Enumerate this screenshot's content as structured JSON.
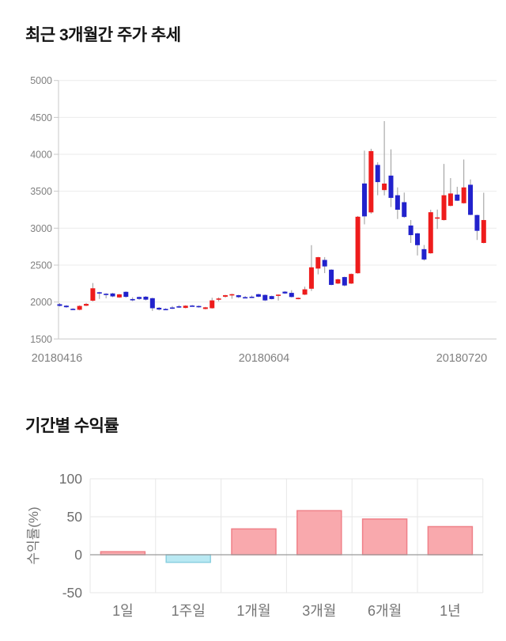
{
  "chart_data": [
    {
      "type": "candlestick",
      "title": "최근 3개월간 주가 추세",
      "ylabel": "",
      "xlabel": "",
      "ylim": [
        1500,
        5000
      ],
      "y_ticks": [
        5000,
        4500,
        4000,
        3500,
        3000,
        2500,
        2000,
        1500
      ],
      "x_tick_labels": [
        "20180416",
        "20180604",
        "20180720"
      ],
      "legend": "none",
      "grid": "horizontal",
      "colors": {
        "up": "#ee1c1c",
        "down": "#2222cc",
        "wick": "#999999",
        "grid": "#ebebeb",
        "axis": "#c9c9c9",
        "tick_text": "#808080"
      },
      "candles_ohlc": [
        [
          1970,
          1985,
          1940,
          1948
        ],
        [
          1950,
          1958,
          1922,
          1930
        ],
        [
          1908,
          1916,
          1896,
          1902
        ],
        [
          1895,
          1955,
          1888,
          1947
        ],
        [
          1950,
          1988,
          1944,
          1974
        ],
        [
          2018,
          2257,
          2008,
          2186
        ],
        [
          2132,
          2138,
          2042,
          2126
        ],
        [
          2112,
          2120,
          2050,
          2106
        ],
        [
          2116,
          2124,
          2066,
          2076
        ],
        [
          2062,
          2110,
          2056,
          2104
        ],
        [
          2138,
          2144,
          2060,
          2070
        ],
        [
          2040,
          2064,
          2012,
          2036
        ],
        [
          2068,
          2074,
          2030,
          2042
        ],
        [
          2072,
          2080,
          2022,
          2032
        ],
        [
          2052,
          2058,
          1880,
          1916
        ],
        [
          1922,
          1932,
          1886,
          1898
        ],
        [
          1906,
          1916,
          1896,
          1904
        ],
        [
          1926,
          1946,
          1906,
          1924
        ],
        [
          1942,
          1958,
          1920,
          1938
        ],
        [
          1920,
          1956,
          1914,
          1950
        ],
        [
          1952,
          1962,
          1940,
          1946
        ],
        [
          1946,
          1952,
          1924,
          1930
        ],
        [
          1906,
          1934,
          1900,
          1928
        ],
        [
          1916,
          2058,
          1910,
          2022
        ],
        [
          2046,
          2062,
          2010,
          2048
        ],
        [
          2072,
          2098,
          2060,
          2092
        ],
        [
          2092,
          2112,
          2044,
          2106
        ],
        [
          2092,
          2098,
          2054,
          2066
        ],
        [
          2066,
          2082,
          2050,
          2062
        ],
        [
          2072,
          2088,
          2056,
          2070
        ],
        [
          2106,
          2112,
          2064,
          2072
        ],
        [
          2096,
          2102,
          2014,
          2022
        ],
        [
          2080,
          2086,
          2036,
          2040
        ],
        [
          2094,
          2104,
          2020,
          2100
        ],
        [
          2140,
          2148,
          2110,
          2116
        ],
        [
          2124,
          2160,
          2062,
          2068
        ],
        [
          2044,
          2062,
          2036,
          2056
        ],
        [
          2100,
          2208,
          2094,
          2172
        ],
        [
          2180,
          2770,
          2150,
          2470
        ],
        [
          2453,
          2612,
          2375,
          2607
        ],
        [
          2570,
          2608,
          2392,
          2482
        ],
        [
          2438,
          2444,
          2226,
          2232
        ],
        [
          2250,
          2315,
          2244,
          2308
        ],
        [
          2338,
          2344,
          2212,
          2224
        ],
        [
          2250,
          2386,
          2244,
          2380
        ],
        [
          2390,
          3165,
          2384,
          3155
        ],
        [
          3605,
          4050,
          3052,
          3160
        ],
        [
          3214,
          4075,
          3196,
          4044
        ],
        [
          3856,
          3892,
          3446,
          3624
        ],
        [
          3516,
          4450,
          3444,
          3604
        ],
        [
          3712,
          4068,
          3286,
          3410
        ],
        [
          3446,
          3552,
          3124,
          3250
        ],
        [
          3352,
          3482,
          3140,
          3152
        ],
        [
          3036,
          3110,
          2800,
          2906
        ],
        [
          2930,
          2936,
          2630,
          2770
        ],
        [
          2716,
          2772,
          2560,
          2576
        ],
        [
          2660,
          3250,
          2654,
          3216
        ],
        [
          3140,
          3252,
          2990,
          3146
        ],
        [
          3110,
          3870,
          3104,
          3446
        ],
        [
          3302,
          3678,
          3296,
          3470
        ],
        [
          3455,
          3560,
          3368,
          3372
        ],
        [
          3338,
          3930,
          3332,
          3552
        ],
        [
          3588,
          3660,
          3176,
          3180
        ],
        [
          3178,
          3182,
          2840,
          2964
        ],
        [
          2800,
          3480,
          2794,
          3110
        ]
      ]
    },
    {
      "type": "bar",
      "title": "기간별 수익률",
      "ylabel": "수익률(%)",
      "xlabel": "",
      "ylim": [
        -50,
        100
      ],
      "y_ticks": [
        100,
        50,
        0,
        -50
      ],
      "categories": [
        "1일",
        "1주일",
        "1개월",
        "3개월",
        "6개월",
        "1년"
      ],
      "values": [
        4,
        -10,
        34,
        58,
        47,
        37
      ],
      "legend": "none",
      "grid": "both",
      "colors": {
        "positive_fill": "#f9a9ad",
        "positive_border": "#ef8088",
        "negative_fill": "#b9e9f3",
        "negative_border": "#8ad0e0",
        "grid": "#e7e7e7",
        "zero_line": "#9a9a9a",
        "tick_text": "#6e6e6e",
        "label_text": "#757575"
      }
    }
  ]
}
